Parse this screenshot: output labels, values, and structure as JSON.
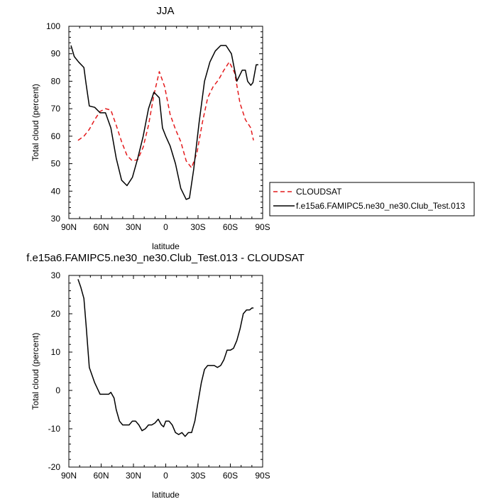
{
  "chart_data": [
    {
      "type": "line",
      "title": "JJA",
      "xlabel": "latitude",
      "ylabel": "Total cloud (percent)",
      "xlim": [
        90,
        -90
      ],
      "ylim": [
        30,
        100
      ],
      "xticks": [
        90,
        60,
        30,
        0,
        -30,
        -60,
        -90
      ],
      "xtick_labels": [
        "90N",
        "60N",
        "30N",
        "0",
        "30S",
        "60S",
        "90S"
      ],
      "yticks": [
        30,
        40,
        50,
        60,
        70,
        80,
        90,
        100
      ],
      "ytick_labels": [
        "30",
        "40",
        "50",
        "60",
        "70",
        "80",
        "90",
        "100"
      ],
      "legend_placement": "right",
      "series": [
        {
          "name": "CLOUDSAT",
          "color": "#e41a1c",
          "dash": "dashed",
          "x": [
            81.5,
            76,
            71,
            66,
            61,
            56,
            51,
            46,
            41,
            36,
            31,
            26,
            21,
            16,
            11,
            6,
            1,
            -4,
            -9,
            -14,
            -19,
            -24,
            -29,
            -34,
            -39,
            -44,
            -49,
            -54,
            -59,
            -64,
            -69,
            -74,
            -79,
            -81.5
          ],
          "y": [
            58.5,
            60,
            62.5,
            66,
            69,
            70,
            69.5,
            64,
            58,
            53,
            51,
            51.5,
            56,
            64,
            75,
            83.5,
            78,
            68,
            62.5,
            58,
            51,
            48.5,
            54,
            65,
            74,
            78,
            80.5,
            84,
            87,
            83,
            72,
            66,
            63,
            58.5
          ]
        },
        {
          "name": "f.e15a6.FAMIPC5.ne30_ne30.Club_Test.013",
          "color": "#000000",
          "dash": "solid",
          "x": [
            88,
            85,
            81,
            76,
            74,
            71,
            66,
            61,
            56,
            51,
            46,
            41,
            36,
            31,
            26,
            21,
            16,
            11,
            6,
            3,
            0,
            -4,
            -9,
            -14,
            -19,
            -22,
            -26,
            -31,
            -36,
            -41,
            -46,
            -51,
            -56,
            -61,
            -66,
            -71,
            -74,
            -76,
            -79,
            -81,
            -84,
            -86
          ],
          "y": [
            93,
            89,
            87,
            85,
            79,
            71,
            70.5,
            68.5,
            68.5,
            63,
            52,
            44,
            42,
            45,
            52,
            60,
            70,
            76,
            74,
            63,
            60,
            56.5,
            50,
            41,
            37,
            37.5,
            48,
            65,
            80,
            87,
            91,
            93,
            93,
            90,
            80,
            84,
            84,
            80,
            78.5,
            79.5,
            86,
            86
          ]
        }
      ]
    },
    {
      "type": "line",
      "title": "f.e15a6.FAMIPC5.ne30_ne30.Club_Test.013 - CLOUDSAT",
      "xlabel": "latitude",
      "ylabel": "Total cloud (percent)",
      "xlim": [
        90,
        -90
      ],
      "ylim": [
        -20,
        30
      ],
      "xticks": [
        90,
        60,
        30,
        0,
        -30,
        -60,
        -90
      ],
      "xtick_labels": [
        "90N",
        "60N",
        "30N",
        "0",
        "30S",
        "60S",
        "90S"
      ],
      "yticks": [
        -20,
        -10,
        0,
        10,
        20,
        30
      ],
      "ytick_labels": [
        "-20",
        "-10",
        "0",
        "10",
        "20",
        "30"
      ],
      "series": [
        {
          "color": "#000000",
          "dash": "solid",
          "x": [
            81.5,
            79,
            76,
            74,
            71,
            66,
            61,
            58,
            56,
            53,
            51,
            48,
            46,
            43,
            40,
            37,
            34,
            31,
            28,
            25,
            22,
            19,
            16,
            13,
            10,
            7,
            4,
            2,
            0,
            -3,
            -6,
            -9,
            -12,
            -15,
            -18,
            -21,
            -24,
            -27,
            -30,
            -33,
            -36,
            -39,
            -42,
            -45,
            -48,
            -51,
            -54,
            -57,
            -60,
            -63,
            -66,
            -69,
            -72,
            -75,
            -78,
            -80,
            -81.5
          ],
          "y": [
            29,
            27,
            24,
            17,
            6,
            2,
            -1,
            -1,
            -1,
            -1,
            -0.5,
            -2,
            -5,
            -8,
            -9,
            -9,
            -9,
            -8,
            -8,
            -9,
            -10.5,
            -10,
            -9,
            -9,
            -8.5,
            -7.5,
            -9,
            -9.5,
            -8,
            -8,
            -9,
            -11,
            -11.5,
            -11,
            -12,
            -11,
            -11,
            -8,
            -3,
            2,
            5.5,
            6.5,
            6.5,
            6.5,
            6,
            6.5,
            8,
            10.5,
            10.5,
            11,
            13,
            16,
            20,
            21,
            21,
            21.5,
            21.5
          ]
        }
      ]
    }
  ]
}
